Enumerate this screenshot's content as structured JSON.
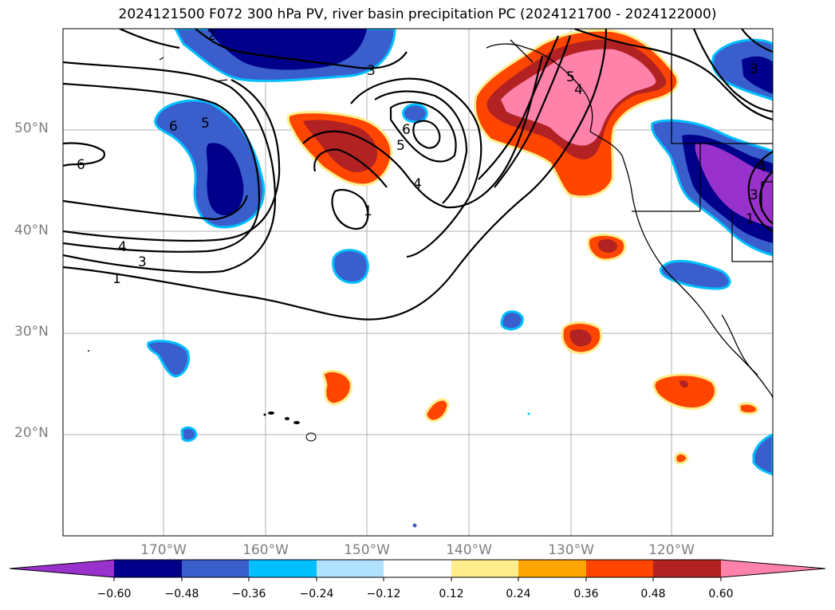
{
  "title": "2024121500 F072 300 hPa PV, river basin precipitation PC (2024121700 - 2024122000)",
  "lat_labels": [
    "50°N",
    "40°N",
    "30°N",
    "20°N"
  ],
  "lon_labels": [
    "170°W",
    "160°W",
    "150°W",
    "140°W",
    "130°W",
    "120°W"
  ],
  "contour_labels": [
    "2",
    "3",
    "6",
    "5",
    "6",
    "5",
    "4",
    "3",
    "1",
    "6",
    "5",
    "4",
    "1",
    "3",
    "4",
    "3",
    "1",
    "4"
  ],
  "colorbar": {
    "ticks": [
      "−0.60",
      "−0.48",
      "−0.36",
      "−0.24",
      "−0.12",
      "0.12",
      "0.24",
      "0.36",
      "0.48",
      "0.60"
    ],
    "colors": [
      "#9932cc",
      "#00008b",
      "#3a5fcd",
      "#00bfff",
      "#b0e2ff",
      "#ffffff",
      "#ffec8b",
      "#ffa500",
      "#ff4500",
      "#b22222",
      "#ff82ab"
    ]
  },
  "colors": {
    "purple": "#9932cc",
    "navy": "#00008b",
    "royal_blue": "#3a5fcd",
    "deep_sky_blue": "#00bfff",
    "light_sky_blue": "#b0e2ff",
    "khaki": "#ffec8b",
    "orange": "#ffa500",
    "orange_red": "#ff4500",
    "firebrick": "#b22222",
    "pink": "#ff82ab"
  }
}
